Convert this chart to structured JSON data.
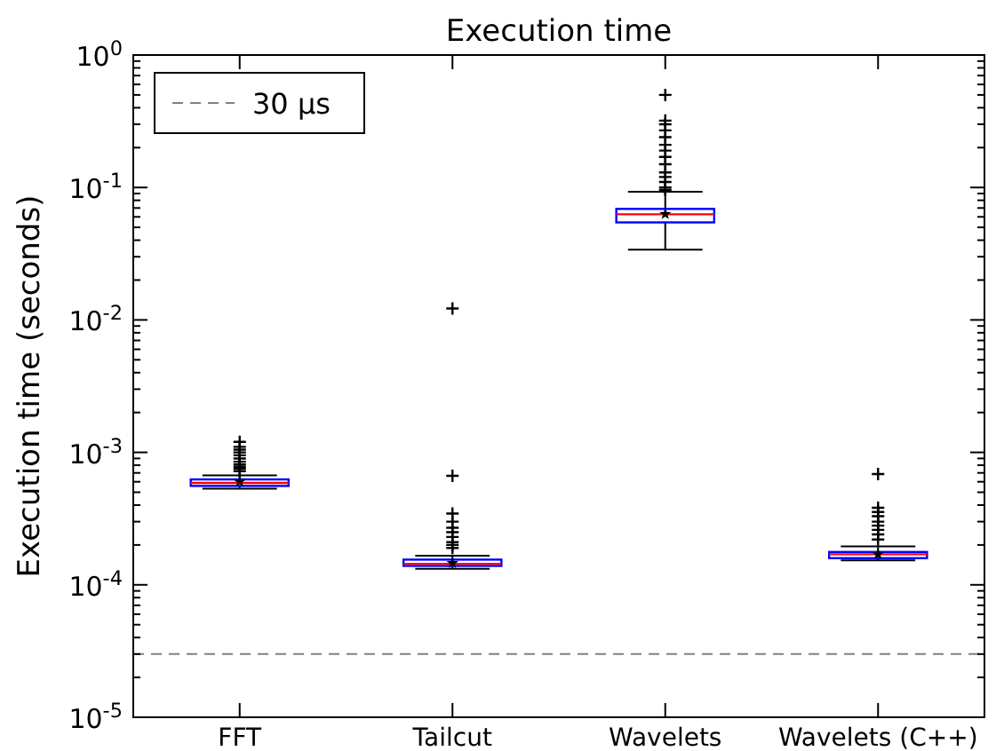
{
  "chart_data": {
    "type": "box",
    "title": "Execution time",
    "ylabel": "Execution time (seconds)",
    "categories": [
      "FFT",
      "Tailcut",
      "Wavelets",
      "Wavelets (C++)"
    ],
    "boxes": [
      {
        "low": 0.000531,
        "q1": 0.000558,
        "median": 0.000588,
        "q3": 0.000625,
        "high": 0.000671,
        "mean": 0.0006,
        "outliers": [
          0.00072,
          0.00075,
          0.00078,
          0.00081,
          0.00085,
          0.0009,
          0.00095,
          0.001,
          0.00105,
          0.0011,
          0.0012
        ]
      },
      {
        "low": 0.000132,
        "q1": 0.000139,
        "median": 0.000144,
        "q3": 0.000155,
        "high": 0.000166,
        "mean": 0.000146,
        "outliers": [
          0.00019,
          0.0002,
          0.00021,
          0.00023,
          0.00025,
          0.00027,
          0.0003,
          0.000345,
          0.000665,
          0.0122
        ]
      },
      {
        "low": 0.0339,
        "q1": 0.0545,
        "median": 0.0628,
        "q3": 0.0689,
        "high": 0.0929,
        "mean": 0.063,
        "outliers": [
          0.096,
          0.1,
          0.11,
          0.12,
          0.13,
          0.15,
          0.17,
          0.19,
          0.21,
          0.24,
          0.27,
          0.3,
          0.32,
          0.5
        ]
      },
      {
        "low": 0.000153,
        "q1": 0.000159,
        "median": 0.00017,
        "q3": 0.000177,
        "high": 0.000195,
        "mean": 0.00017,
        "outliers": [
          0.00022,
          0.00024,
          0.00026,
          0.00028,
          0.0003,
          0.00033,
          0.000355,
          0.000382,
          0.000686
        ]
      }
    ],
    "color": "#0000ff",
    "marker": "star",
    "ylim": [
      1e-05,
      1
    ],
    "yticks": [
      {
        "value": 1e-05,
        "label": "10$^{-5}$"
      },
      {
        "value": 0.0001,
        "label": "10$^{-4}$"
      },
      {
        "value": 0.001,
        "label": "10$^{-3}$"
      },
      {
        "value": 0.01,
        "label": "10$^{-2}$"
      },
      {
        "value": 0.1,
        "label": "10$^{-1}$"
      },
      {
        "value": 1,
        "label": "10$^{0}$"
      }
    ],
    "log": true,
    "grid": false,
    "legend": "top left",
    "ref_lines": [
      {
        "axis": "y",
        "value": 3e-05,
        "label": "30 μs",
        "color": "#808080",
        "line_style": "dashed"
      }
    ]
  }
}
